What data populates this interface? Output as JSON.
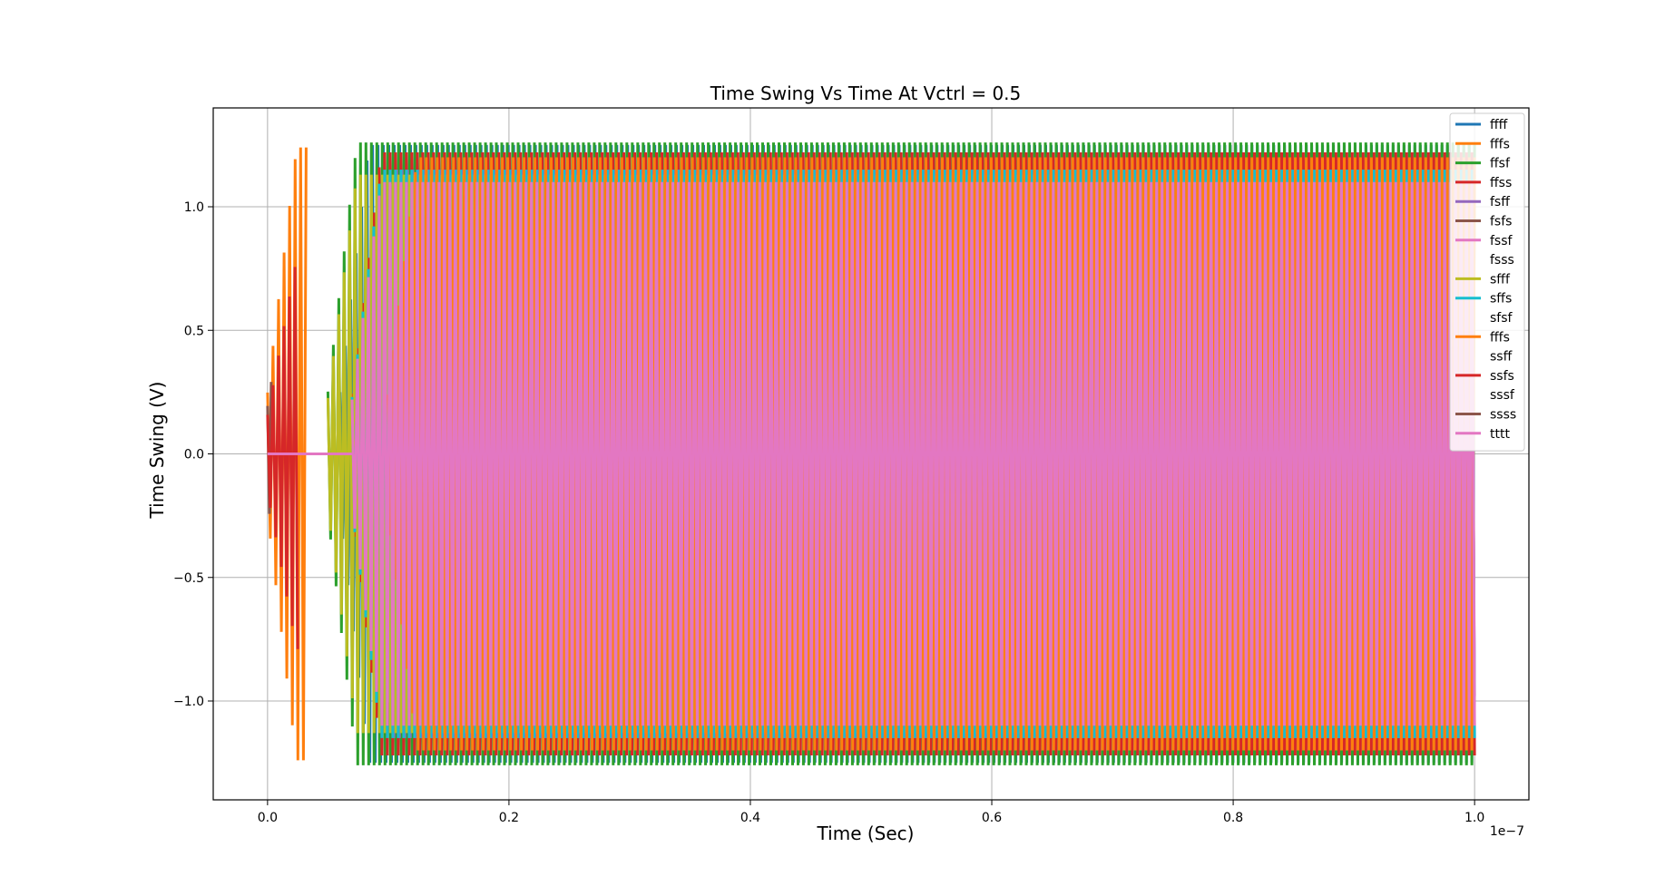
{
  "chart_data": {
    "type": "line",
    "title": "Time Swing Vs Time At Vctrl = 0.5",
    "xlabel": "Time (Sec)",
    "ylabel": "Time Swing (V)",
    "x_offset_text": "1e−7",
    "xlim": [
      -0.045,
      1.045
    ],
    "ylim": [
      -1.4,
      1.4
    ],
    "x_ticks": [
      0.0,
      0.2,
      0.4,
      0.6,
      0.8,
      1.0
    ],
    "x_tick_labels": [
      "0.0",
      "0.2",
      "0.4",
      "0.6",
      "0.8",
      "1.0"
    ],
    "y_ticks": [
      -1.0,
      -0.5,
      0.0,
      0.5,
      1.0
    ],
    "y_tick_labels": [
      "−1.0",
      "−0.5",
      "0.0",
      "0.5",
      "1.0"
    ],
    "grid": true,
    "legend_position": "upper-right",
    "series": [
      {
        "name": "ffff",
        "color": "#1f77b4",
        "amplitude": 1.25,
        "start": 0.06,
        "end": 1.0,
        "period": 0.0045,
        "visible": true
      },
      {
        "name": "fffs",
        "color": "#ff7f0e",
        "amplitude": 1.24,
        "start": 0.0,
        "end": 0.032,
        "period": 0.0045,
        "visible": true
      },
      {
        "name": "ffsf",
        "color": "#2ca02c",
        "amplitude": 1.26,
        "start": 0.05,
        "end": 1.0,
        "period": 0.0045,
        "visible": true
      },
      {
        "name": "ffss",
        "color": "#d62728",
        "amplitude": 1.22,
        "start": 0.07,
        "end": 1.0,
        "period": 0.0045,
        "visible": true
      },
      {
        "name": "fsff",
        "color": "#9467bd",
        "amplitude": 1.15,
        "start": 0.08,
        "end": 1.0,
        "period": 0.0045,
        "visible": true
      },
      {
        "name": "fsfs",
        "color": "#8c564b",
        "amplitude": 0.97,
        "start": 0.0,
        "end": 0.003,
        "period": 0.0045,
        "visible": true
      },
      {
        "name": "fssf",
        "color": "#e377c2",
        "amplitude": 0.98,
        "start": 0.26,
        "end": 1.0,
        "period": 0.0045,
        "visible": true
      },
      {
        "name": "fsss",
        "color": "#7f7f7f",
        "visible": false
      },
      {
        "name": "sfff",
        "color": "#bcbd22",
        "amplitude": 1.13,
        "start": 0.05,
        "end": 1.0,
        "period": 0.0045,
        "visible": true
      },
      {
        "name": "sffs",
        "color": "#17becf",
        "amplitude": 1.15,
        "start": 0.07,
        "end": 1.0,
        "period": 0.0045,
        "visible": true
      },
      {
        "name": "sfsf",
        "color": "#1f77b4",
        "visible": false
      },
      {
        "name": "fffs",
        "color": "#ff7f0e",
        "amplitude": 1.2,
        "start": 0.1,
        "end": 1.0,
        "period": 0.0045,
        "visible": true
      },
      {
        "name": "ssff",
        "color": "#2ca02c",
        "visible": false
      },
      {
        "name": "ssfs",
        "color": "#d62728",
        "amplitude": 0.79,
        "start": 0.0,
        "end": 0.025,
        "period": 0.0045,
        "visible": true
      },
      {
        "name": "sssf",
        "color": "#9467bd",
        "visible": false
      },
      {
        "name": "ssss",
        "color": "#8c564b",
        "visible": true
      },
      {
        "name": "tttt",
        "color": "#e377c2",
        "amplitude": 1.1,
        "start": 0.07,
        "end": 1.0,
        "period": 0.0045,
        "visible": true
      }
    ]
  }
}
